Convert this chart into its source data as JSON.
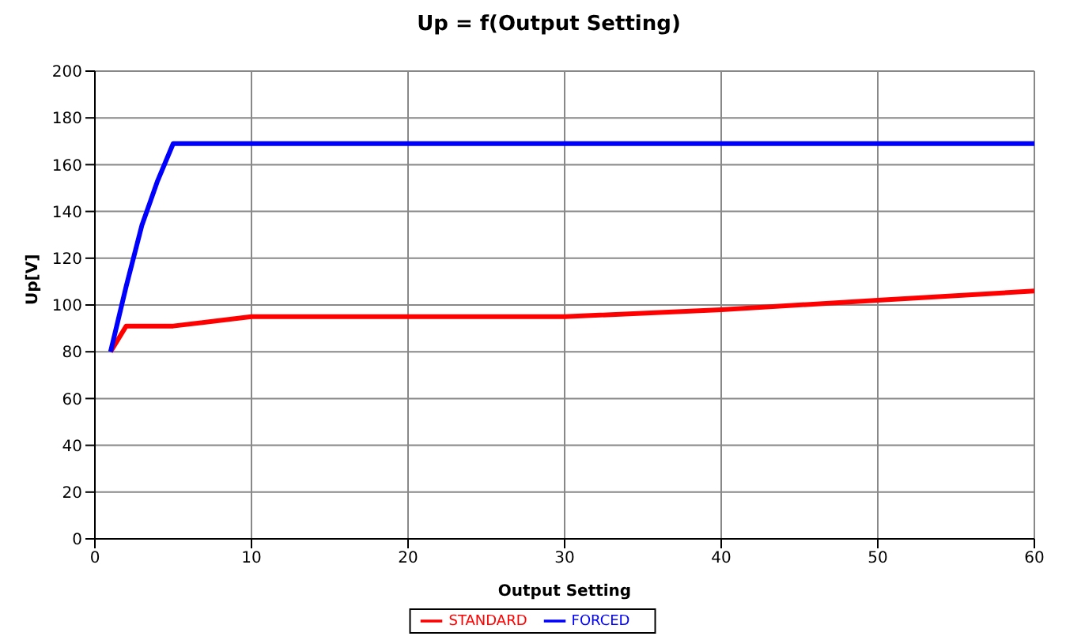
{
  "chart_data": {
    "type": "line",
    "title": "Up = f(Output Setting)",
    "xlabel": "Output Setting",
    "ylabel": "Up[V]",
    "series": [
      {
        "name": "STANDARD",
        "color": "#ff0000",
        "x": [
          1,
          2,
          5,
          10,
          30,
          40,
          50,
          60
        ],
        "values": [
          80,
          91,
          91,
          95,
          95,
          98,
          102,
          106
        ]
      },
      {
        "name": "FORCED",
        "color": "#0000ff",
        "x": [
          1,
          2,
          3,
          4,
          5,
          60
        ],
        "values": [
          80,
          108,
          134,
          153,
          169,
          169
        ]
      }
    ],
    "xlim": [
      0,
      60
    ],
    "xticks": [
      0,
      10,
      20,
      30,
      40,
      50,
      60
    ],
    "ylim": [
      0,
      200
    ],
    "yticks": [
      0,
      20,
      40,
      60,
      80,
      100,
      120,
      140,
      160,
      180,
      200
    ],
    "grid": true,
    "legend": "bottom",
    "marker": "none",
    "line_style": "solid"
  }
}
